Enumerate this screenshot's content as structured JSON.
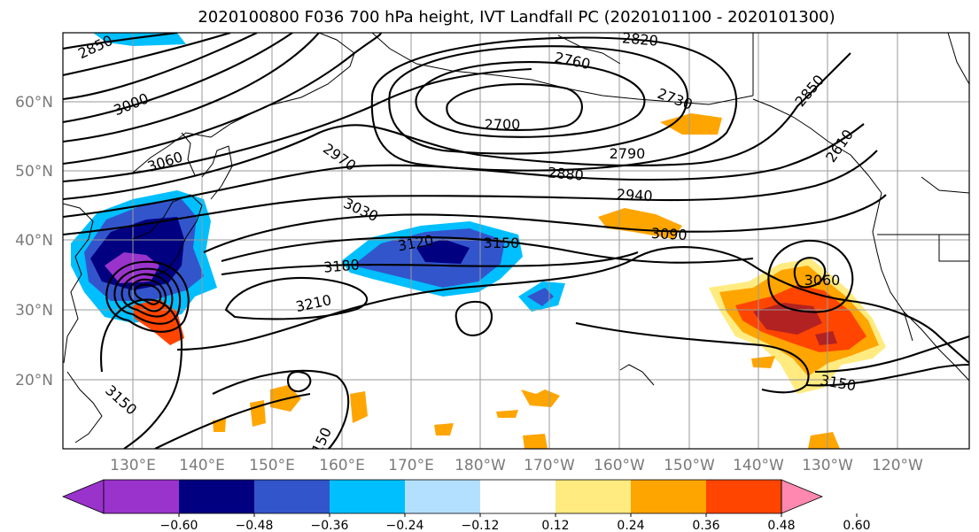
{
  "title": "2020100800 F036 700 hPa height, IVT Landfall PC (2020101100 - 2020101300)",
  "lat_labels": [
    "60°N",
    "50°N",
    "40°N",
    "30°N",
    "20°N"
  ],
  "lon_labels": [
    "130°E",
    "140°E",
    "150°E",
    "160°E",
    "170°E",
    "180°W",
    "170°W",
    "160°W",
    "150°W",
    "140°W",
    "130°W",
    "120°W"
  ],
  "contour_labels": [
    "2850",
    "2820",
    "2760",
    "2700",
    "2730",
    "2790",
    "2850",
    "2880",
    "2940",
    "3000",
    "3060",
    "2970",
    "3030",
    "3090",
    "3120",
    "3150",
    "3180",
    "3210",
    "3060",
    "3150",
    "3150",
    "150",
    "2610"
  ],
  "colorbar": {
    "ticks": [
      "−0.60",
      "−0.48",
      "−0.36",
      "−0.24",
      "−0.12",
      "0.12",
      "0.24",
      "0.36",
      "0.48",
      "0.60"
    ],
    "colors": [
      "#9933cc",
      "#000080",
      "#3355cc",
      "#00bfff",
      "#b3e0ff",
      "#ffffff",
      "#ffeb80",
      "#ffa500",
      "#ff4500",
      "#b22222",
      "#ff88b0"
    ]
  }
}
